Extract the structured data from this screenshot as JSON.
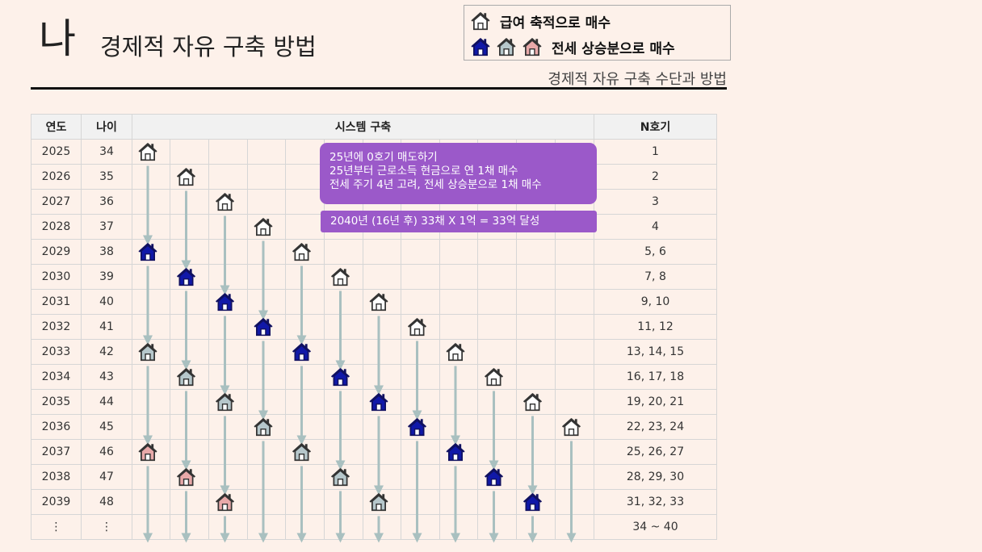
{
  "header": {
    "big_letter": "나",
    "title": "경제적 자유 구축 방법",
    "subtitle": "경제적 자유 구축 수단과 방법"
  },
  "legend": {
    "items": [
      {
        "label": "급여 축적으로 매수",
        "icons": [
          "white"
        ]
      },
      {
        "label": "전세 상승분으로 매수",
        "icons": [
          "navy",
          "gray",
          "pink"
        ]
      }
    ]
  },
  "colors": {
    "white": "#ffffff",
    "navy": "#1018a8",
    "gray": "#b6c7cb",
    "pink": "#e8a9a9",
    "arrow": "#a9c0c0",
    "bubble": "#9b59c9"
  },
  "table": {
    "headers": {
      "year": "연도",
      "age": "나이",
      "system": "시스템 구축",
      "n": "N호기"
    },
    "rows": [
      {
        "year": "2025",
        "age": "34",
        "n": "1"
      },
      {
        "year": "2026",
        "age": "35",
        "n": "2"
      },
      {
        "year": "2027",
        "age": "36",
        "n": "3"
      },
      {
        "year": "2028",
        "age": "37",
        "n": "4"
      },
      {
        "year": "2029",
        "age": "38",
        "n": "5, 6"
      },
      {
        "year": "2030",
        "age": "39",
        "n": "7, 8"
      },
      {
        "year": "2031",
        "age": "40",
        "n": "9, 10"
      },
      {
        "year": "2032",
        "age": "41",
        "n": "11, 12"
      },
      {
        "year": "2033",
        "age": "42",
        "n": "13, 14, 15"
      },
      {
        "year": "2034",
        "age": "43",
        "n": "16, 17, 18"
      },
      {
        "year": "2035",
        "age": "44",
        "n": "19, 20, 21"
      },
      {
        "year": "2036",
        "age": "45",
        "n": "22, 23, 24"
      },
      {
        "year": "2037",
        "age": "46",
        "n": "25, 26, 27"
      },
      {
        "year": "2038",
        "age": "47",
        "n": "28, 29, 30"
      },
      {
        "year": "2039",
        "age": "48",
        "n": "31, 32, 33"
      },
      {
        "year": "⋮",
        "age": "⋮",
        "n": "34 ~ 40"
      }
    ],
    "houses": [
      {
        "row": 0,
        "col": 0,
        "type": "white"
      },
      {
        "row": 1,
        "col": 1,
        "type": "white"
      },
      {
        "row": 2,
        "col": 2,
        "type": "white"
      },
      {
        "row": 3,
        "col": 3,
        "type": "white"
      },
      {
        "row": 4,
        "col": 0,
        "type": "navy"
      },
      {
        "row": 4,
        "col": 4,
        "type": "white"
      },
      {
        "row": 5,
        "col": 1,
        "type": "navy"
      },
      {
        "row": 5,
        "col": 5,
        "type": "white"
      },
      {
        "row": 6,
        "col": 2,
        "type": "navy"
      },
      {
        "row": 6,
        "col": 6,
        "type": "white"
      },
      {
        "row": 7,
        "col": 3,
        "type": "navy"
      },
      {
        "row": 7,
        "col": 7,
        "type": "white"
      },
      {
        "row": 8,
        "col": 0,
        "type": "gray"
      },
      {
        "row": 8,
        "col": 4,
        "type": "navy"
      },
      {
        "row": 8,
        "col": 8,
        "type": "white"
      },
      {
        "row": 9,
        "col": 1,
        "type": "gray"
      },
      {
        "row": 9,
        "col": 5,
        "type": "navy"
      },
      {
        "row": 9,
        "col": 9,
        "type": "white"
      },
      {
        "row": 10,
        "col": 2,
        "type": "gray"
      },
      {
        "row": 10,
        "col": 6,
        "type": "navy"
      },
      {
        "row": 10,
        "col": 10,
        "type": "white"
      },
      {
        "row": 11,
        "col": 3,
        "type": "gray"
      },
      {
        "row": 11,
        "col": 7,
        "type": "navy"
      },
      {
        "row": 11,
        "col": 11,
        "type": "white"
      },
      {
        "row": 12,
        "col": 0,
        "type": "pink"
      },
      {
        "row": 12,
        "col": 4,
        "type": "gray"
      },
      {
        "row": 12,
        "col": 8,
        "type": "navy"
      },
      {
        "row": 13,
        "col": 1,
        "type": "pink"
      },
      {
        "row": 13,
        "col": 5,
        "type": "gray"
      },
      {
        "row": 13,
        "col": 9,
        "type": "navy"
      },
      {
        "row": 14,
        "col": 2,
        "type": "pink"
      },
      {
        "row": 14,
        "col": 6,
        "type": "gray"
      },
      {
        "row": 14,
        "col": 10,
        "type": "navy"
      }
    ]
  },
  "notes": {
    "box1": [
      "25년에 0호기 매도하기",
      "25년부터 근로소득 현금으로 연 1채 매수",
      "전세 주기 4년 고려, 전세 상승분으로 1채 매수"
    ],
    "box2": "2040년 (16년  후) 33채 X 1억 = 33억 달성"
  }
}
